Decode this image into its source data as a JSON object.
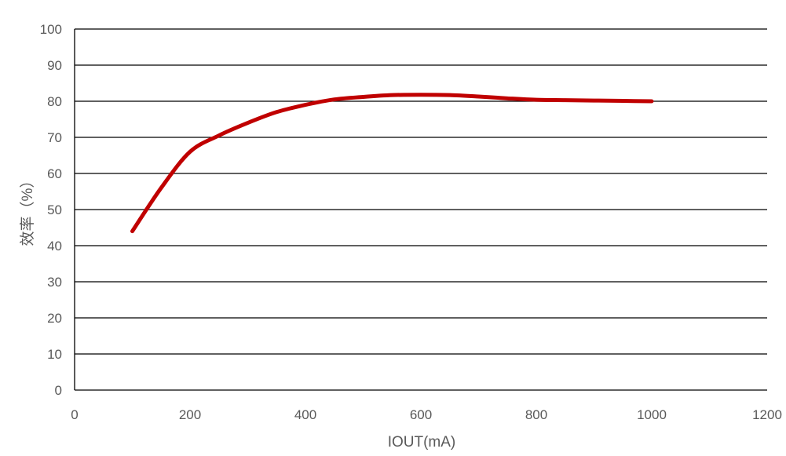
{
  "chart_data": {
    "type": "line",
    "title": "",
    "xlabel": "IOUT(mA)",
    "ylabel": "效率（%）",
    "xlim": [
      0,
      1200
    ],
    "ylim": [
      0,
      100
    ],
    "x_ticks": [
      0,
      200,
      400,
      600,
      800,
      1000,
      1200
    ],
    "y_ticks": [
      0,
      10,
      20,
      30,
      40,
      50,
      60,
      70,
      80,
      90,
      100
    ],
    "grid": "horizontal",
    "legend": "none",
    "series": [
      {
        "color": "#c00000",
        "x": [
          100,
          150,
          200,
          250,
          300,
          350,
          400,
          450,
          500,
          550,
          600,
          650,
          700,
          750,
          800,
          850,
          900,
          950,
          1000
        ],
        "y": [
          44,
          56,
          66,
          70.5,
          74,
          77,
          79,
          80.5,
          81.2,
          81.7,
          81.8,
          81.7,
          81.3,
          80.8,
          80.4,
          80.3,
          80.2,
          80.1,
          80
        ]
      }
    ]
  }
}
